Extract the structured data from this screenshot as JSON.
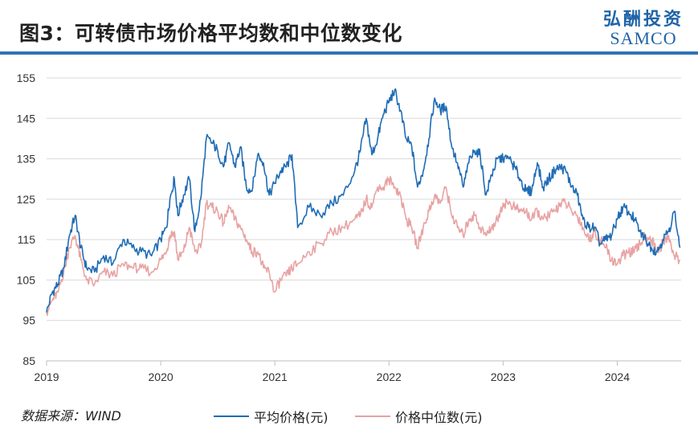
{
  "header": {
    "title": "图3：可转债市场价格平均数和中位数变化",
    "brand_cn": "弘酬投资",
    "brand_en": "SAMCO"
  },
  "footer": {
    "source": "数据来源：WIND"
  },
  "colors": {
    "rule": "#2e74b5",
    "avg": "#1f6cb5",
    "median": "#e8a3a3",
    "grid": "#d9d9d9",
    "axis": "#bfbfbf"
  },
  "chart_data": {
    "type": "line",
    "title": "图3：可转债市场价格平均数和中位数变化",
    "xlabel": "",
    "ylabel": "",
    "xlim": [
      2019.0,
      2024.56
    ],
    "ylim": [
      85,
      155
    ],
    "y_ticks": [
      85,
      95,
      105,
      115,
      125,
      135,
      145,
      155
    ],
    "x_ticks": [
      "2019",
      "2020",
      "2021",
      "2022",
      "2023",
      "2024"
    ],
    "grid": true,
    "legend_position": "bottom",
    "series": [
      {
        "name": "平均价格(元)",
        "color": "#1f6cb5",
        "x": [
          2019.0,
          2019.05,
          2019.1,
          2019.15,
          2019.2,
          2019.25,
          2019.3,
          2019.35,
          2019.42,
          2019.5,
          2019.58,
          2019.67,
          2019.75,
          2019.83,
          2019.92,
          2020.0,
          2020.05,
          2020.08,
          2020.12,
          2020.15,
          2020.2,
          2020.25,
          2020.3,
          2020.35,
          2020.4,
          2020.45,
          2020.5,
          2020.55,
          2020.6,
          2020.65,
          2020.7,
          2020.75,
          2020.8,
          2020.85,
          2020.9,
          2020.95,
          2021.0,
          2021.05,
          2021.1,
          2021.15,
          2021.2,
          2021.3,
          2021.4,
          2021.5,
          2021.6,
          2021.7,
          2021.75,
          2021.8,
          2021.85,
          2021.9,
          2021.95,
          2022.0,
          2022.05,
          2022.1,
          2022.15,
          2022.2,
          2022.25,
          2022.3,
          2022.35,
          2022.4,
          2022.45,
          2022.5,
          2022.55,
          2022.6,
          2022.65,
          2022.7,
          2022.75,
          2022.8,
          2022.85,
          2022.9,
          2022.95,
          2023.0,
          2023.05,
          2023.1,
          2023.15,
          2023.2,
          2023.25,
          2023.3,
          2023.35,
          2023.4,
          2023.45,
          2023.5,
          2023.55,
          2023.6,
          2023.65,
          2023.7,
          2023.75,
          2023.8,
          2023.85,
          2023.9,
          2023.95,
          2024.0,
          2024.05,
          2024.1,
          2024.15,
          2024.2,
          2024.25,
          2024.3,
          2024.35,
          2024.4,
          2024.45,
          2024.5,
          2024.55
        ],
        "values": [
          97,
          102,
          104,
          108,
          116,
          121,
          113,
          108,
          107,
          111,
          109,
          115,
          113,
          112,
          111,
          115,
          118,
          125,
          130,
          121,
          126,
          130,
          117,
          125,
          140,
          139,
          137,
          133,
          139,
          133,
          138,
          128,
          127,
          136,
          134,
          126,
          129,
          132,
          133,
          136,
          118,
          123,
          121,
          124,
          126,
          132,
          137,
          145,
          136,
          140,
          146,
          149,
          152,
          147,
          140,
          138,
          128,
          132,
          140,
          150,
          147,
          148,
          138,
          134,
          128,
          134,
          137,
          136,
          126,
          131,
          135,
          135,
          135,
          133,
          130,
          127,
          127,
          134,
          128,
          130,
          132,
          133,
          132,
          128,
          126,
          120,
          118,
          118,
          114,
          115,
          116,
          120,
          123,
          122,
          120,
          117,
          115,
          113,
          112,
          115,
          117,
          122,
          113
        ]
      },
      {
        "name": "价格中位数(元)",
        "color": "#e8a3a3",
        "x": [
          2019.0,
          2019.05,
          2019.1,
          2019.15,
          2019.2,
          2019.25,
          2019.3,
          2019.35,
          2019.42,
          2019.5,
          2019.58,
          2019.67,
          2019.75,
          2019.83,
          2019.92,
          2020.0,
          2020.05,
          2020.08,
          2020.12,
          2020.15,
          2020.2,
          2020.25,
          2020.3,
          2020.35,
          2020.4,
          2020.45,
          2020.5,
          2020.55,
          2020.6,
          2020.65,
          2020.7,
          2020.75,
          2020.8,
          2020.85,
          2020.9,
          2020.95,
          2021.0,
          2021.05,
          2021.1,
          2021.15,
          2021.2,
          2021.3,
          2021.4,
          2021.5,
          2021.6,
          2021.7,
          2021.75,
          2021.8,
          2021.85,
          2021.9,
          2021.95,
          2022.0,
          2022.05,
          2022.1,
          2022.15,
          2022.2,
          2022.25,
          2022.3,
          2022.35,
          2022.4,
          2022.45,
          2022.5,
          2022.55,
          2022.6,
          2022.65,
          2022.7,
          2022.75,
          2022.8,
          2022.85,
          2022.9,
          2022.95,
          2023.0,
          2023.05,
          2023.1,
          2023.15,
          2023.2,
          2023.25,
          2023.3,
          2023.35,
          2023.4,
          2023.45,
          2023.5,
          2023.55,
          2023.6,
          2023.65,
          2023.7,
          2023.75,
          2023.8,
          2023.85,
          2023.9,
          2023.95,
          2024.0,
          2024.05,
          2024.1,
          2024.15,
          2024.2,
          2024.25,
          2024.3,
          2024.35,
          2024.4,
          2024.45,
          2024.5,
          2024.55
        ],
        "values": [
          97,
          100,
          102,
          107,
          113,
          116,
          110,
          105,
          104,
          107,
          106,
          109,
          108,
          108,
          107,
          110,
          112,
          116,
          117,
          110,
          112,
          118,
          112,
          113,
          124,
          123,
          122,
          119,
          123,
          120,
          118,
          115,
          112,
          112,
          108,
          107,
          102,
          105,
          106,
          108,
          109,
          112,
          114,
          117,
          118,
          120,
          121,
          125,
          123,
          128,
          128,
          130,
          128,
          126,
          120,
          118,
          113,
          118,
          122,
          126,
          124,
          128,
          121,
          118,
          116,
          120,
          121,
          118,
          116,
          118,
          120,
          124,
          124,
          123,
          122,
          122,
          120,
          122,
          120,
          121,
          122,
          124,
          124,
          122,
          121,
          118,
          115,
          117,
          115,
          113,
          110,
          109,
          111,
          112,
          112,
          114,
          116,
          115,
          112,
          114,
          116,
          111,
          110
        ]
      }
    ]
  }
}
